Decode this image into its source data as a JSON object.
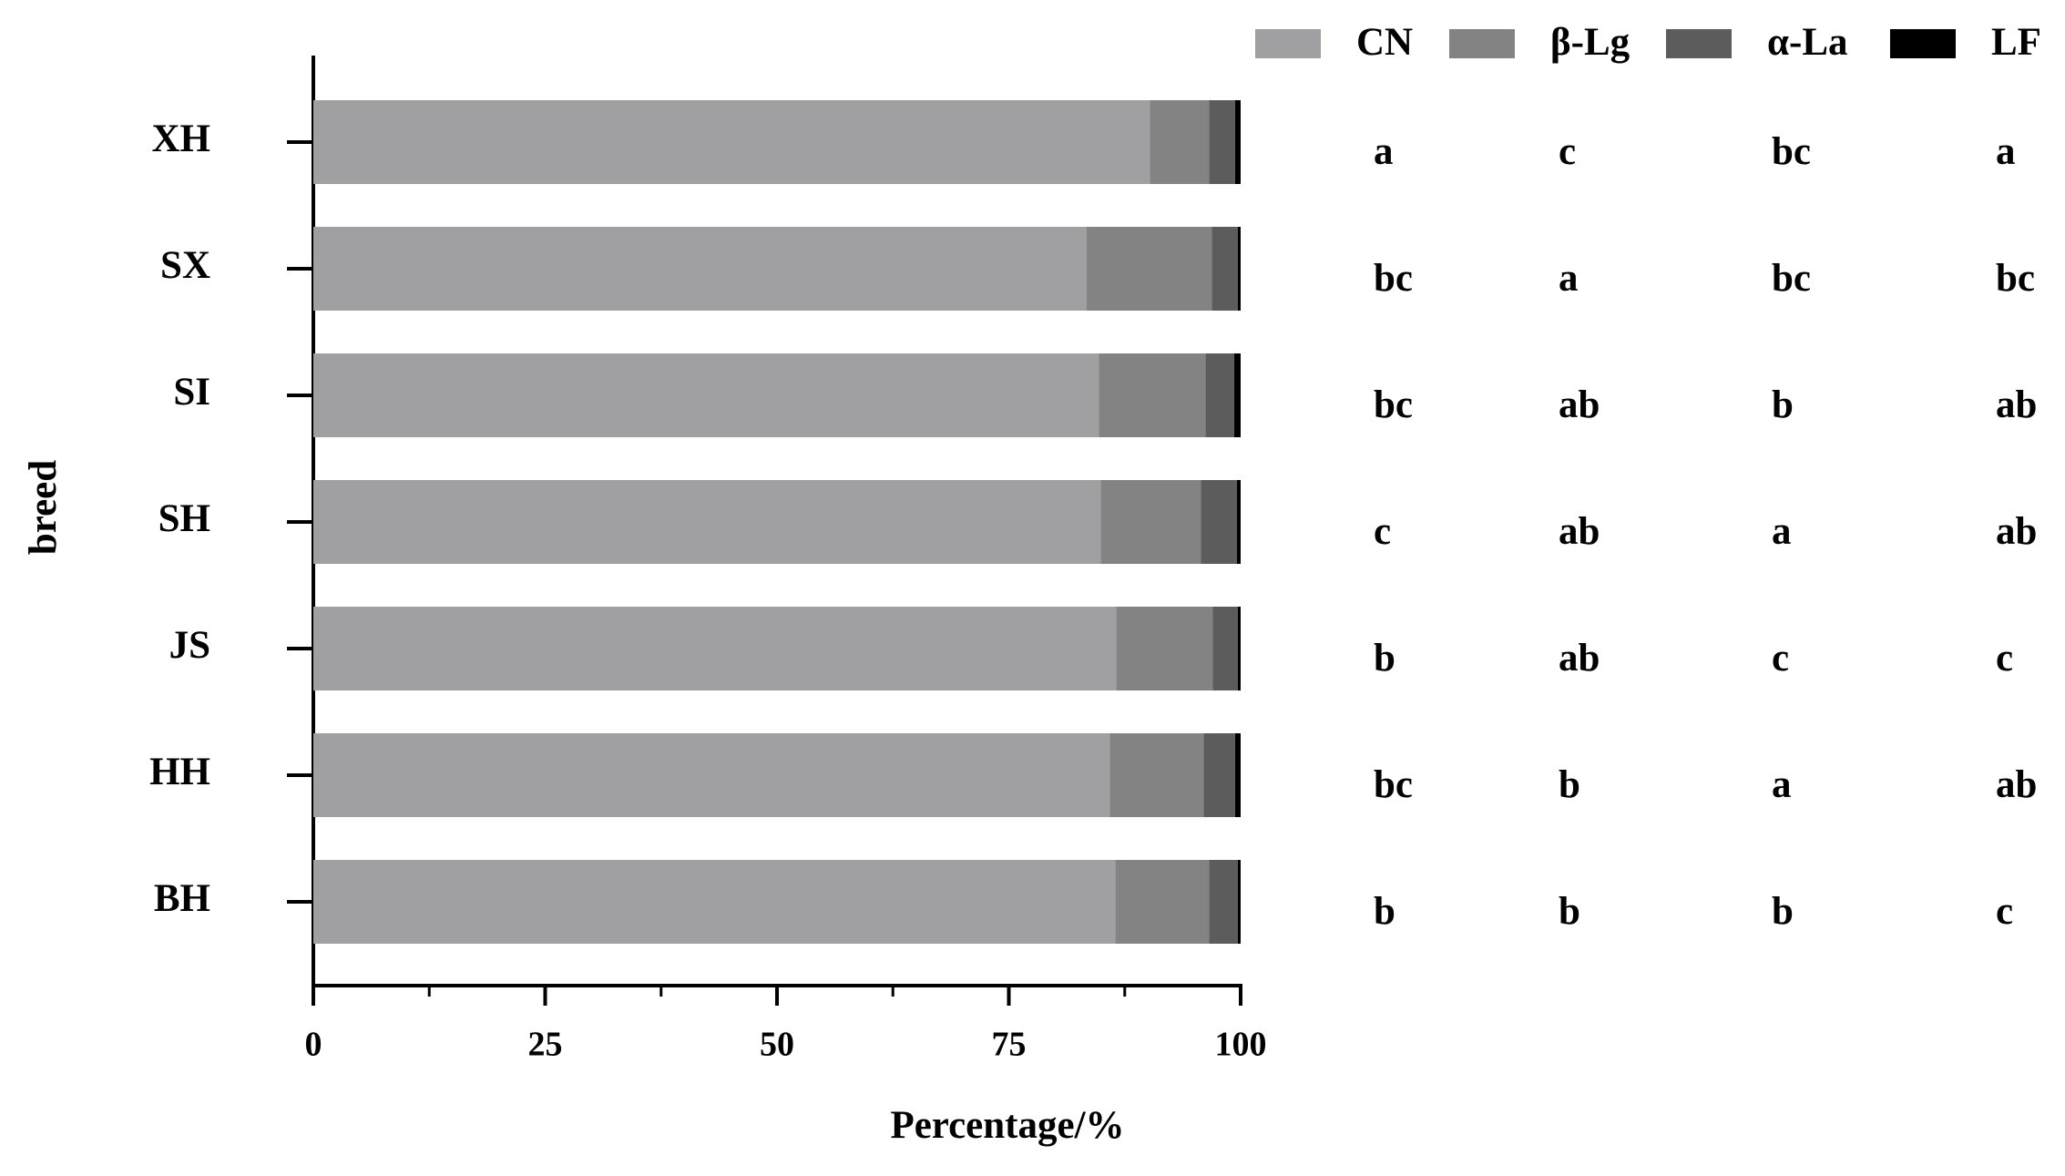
{
  "chart_data": {
    "type": "stacked_barh",
    "categories": [
      "XH",
      "SX",
      "SI",
      "SH",
      "JS",
      "HH",
      "BH"
    ],
    "series": [
      {
        "name": "CN",
        "color": "#a0a0a2",
        "values": [
          90.2,
          83.4,
          84.7,
          84.9,
          86.6,
          85.9,
          86.5
        ],
        "letters": [
          "a",
          "bc",
          "bc",
          "c",
          "b",
          "bc",
          "b"
        ]
      },
      {
        "name": "β-Lg",
        "color": "#838383",
        "values": [
          6.4,
          13.5,
          11.5,
          10.8,
          10.4,
          10.1,
          10.1
        ],
        "letters": [
          "c",
          "a",
          "ab",
          "ab",
          "ab",
          "b",
          "b"
        ]
      },
      {
        "name": "α-La",
        "color": "#5c5c5c",
        "values": [
          2.8,
          2.8,
          3.1,
          3.9,
          2.7,
          3.4,
          3.1
        ],
        "letters": [
          "bc",
          "bc",
          "b",
          "a",
          "c",
          "a",
          "b"
        ]
      },
      {
        "name": "LF",
        "color": "#000000",
        "values": [
          0.6,
          0.3,
          0.7,
          0.4,
          0.3,
          0.6,
          0.3
        ],
        "letters": [
          "a",
          "bc",
          "ab",
          "ab",
          "c",
          "ab",
          "c"
        ]
      }
    ],
    "xlim": [
      0,
      100
    ],
    "xticks": [
      0,
      25,
      50,
      75,
      100
    ],
    "xlabel": "Percentage/%",
    "ylabel": "breed"
  }
}
